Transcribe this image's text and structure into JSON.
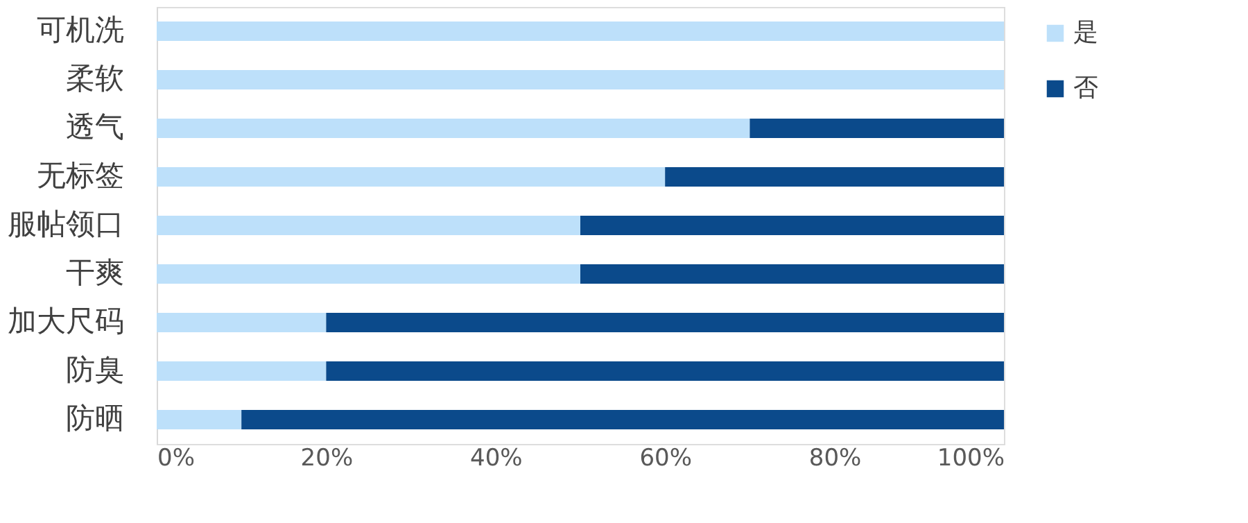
{
  "chart_data": {
    "type": "bar",
    "orientation": "horizontal",
    "stacked": true,
    "categories": [
      "可机洗",
      "柔软",
      "透气",
      "无标签",
      "服帖领口",
      "干爽",
      "加大尺码",
      "防臭",
      "防晒"
    ],
    "series": [
      {
        "name": "是",
        "color": "#bde0fa",
        "values": [
          100,
          100,
          70,
          60,
          50,
          50,
          20,
          20,
          10
        ]
      },
      {
        "name": "否",
        "color": "#0b4a8b",
        "values": [
          0,
          0,
          30,
          40,
          50,
          50,
          80,
          80,
          90
        ]
      }
    ],
    "xlim": [
      0,
      100
    ],
    "xticks": [
      {
        "value": 0,
        "label": "0%"
      },
      {
        "value": 20,
        "label": "20%"
      },
      {
        "value": 40,
        "label": "40%"
      },
      {
        "value": 60,
        "label": "60%"
      },
      {
        "value": 80,
        "label": "80%"
      },
      {
        "value": 100,
        "label": "100%"
      }
    ],
    "grid": false,
    "legend": "right"
  }
}
